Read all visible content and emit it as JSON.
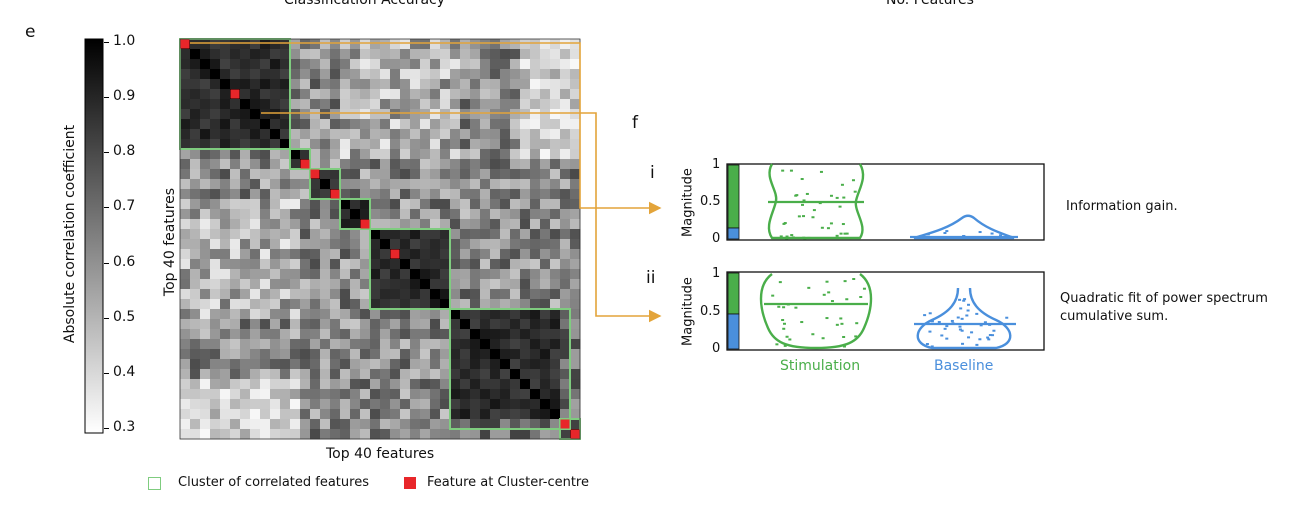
{
  "header": {
    "left_title_partial": "Classification Accuracy",
    "right_title_partial": "No. Features"
  },
  "panel_e": {
    "letter": "e",
    "colorbar": {
      "label": "Absolute correlation coefficient",
      "ticks": [
        "1.0",
        "0.9",
        "0.8",
        "0.7",
        "0.6",
        "0.5",
        "0.4",
        "0.3"
      ],
      "range": [
        0.3,
        1.0
      ],
      "colormap": "greyscale (white = low, black = high)"
    },
    "xlabel": "Top 40 features",
    "ylabel": "Top 40 features",
    "legend": {
      "cluster_label": "Cluster of correlated features",
      "centre_label": "Feature at Cluster-centre",
      "cluster_color": "#7fcc7f",
      "centre_color": "#e8262a"
    }
  },
  "panel_f": {
    "letter": "f",
    "rows": [
      {
        "numeral": "i",
        "ylabel": "Magnitude",
        "description": "Information gain."
      },
      {
        "numeral": "ii",
        "ylabel": "Magnitude",
        "description_line1": "Quadratic fit of power spectrum",
        "description_line2": "cumulative sum."
      }
    ],
    "yticks": [
      "1",
      "0.5",
      "0"
    ],
    "groups": [
      {
        "name": "Stimulation",
        "color": "#4aae4a"
      },
      {
        "name": "Baseline",
        "color": "#4a8fdc"
      }
    ],
    "arrow_color": "#e3a43a"
  },
  "chart_data": [
    {
      "type": "heatmap",
      "title": "",
      "xlabel": "Top 40 features",
      "ylabel": "Top 40 features",
      "n_features": 40,
      "value_range": [
        0.3,
        1.0
      ],
      "clusters": [
        {
          "start_feature": 1,
          "end_feature": 11
        },
        {
          "start_feature": 12,
          "end_feature": 13
        },
        {
          "start_feature": 14,
          "end_feature": 16
        },
        {
          "start_feature": 17,
          "end_feature": 19
        },
        {
          "start_feature": 20,
          "end_feature": 27
        },
        {
          "start_feature": 28,
          "end_feature": 39
        },
        {
          "start_feature": 39,
          "end_feature": 40
        }
      ],
      "cluster_centres": [
        1,
        6,
        13,
        14,
        16,
        19,
        22,
        39,
        40
      ],
      "legend": [
        "Cluster of correlated features",
        "Feature at Cluster-centre"
      ]
    },
    {
      "type": "violin",
      "title": "Information gain.",
      "ylabel": "Magnitude",
      "ylim": [
        0,
        1
      ],
      "categories": [
        "Stimulation",
        "Baseline"
      ],
      "medians": [
        0.5,
        0.0
      ],
      "baseline_max": 0.32,
      "stacked_bar": {
        "stimulation_fraction": 0.85,
        "baseline_fraction": 0.15
      }
    },
    {
      "type": "violin",
      "title": "Quadratic fit of power spectrum cumulative sum.",
      "ylabel": "Magnitude",
      "ylim": [
        0,
        1
      ],
      "categories": [
        "Stimulation",
        "Baseline"
      ],
      "medians": [
        0.57,
        0.3
      ],
      "baseline_max": 0.8,
      "stacked_bar": {
        "stimulation_fraction": 0.52,
        "baseline_fraction": 0.48
      }
    }
  ]
}
